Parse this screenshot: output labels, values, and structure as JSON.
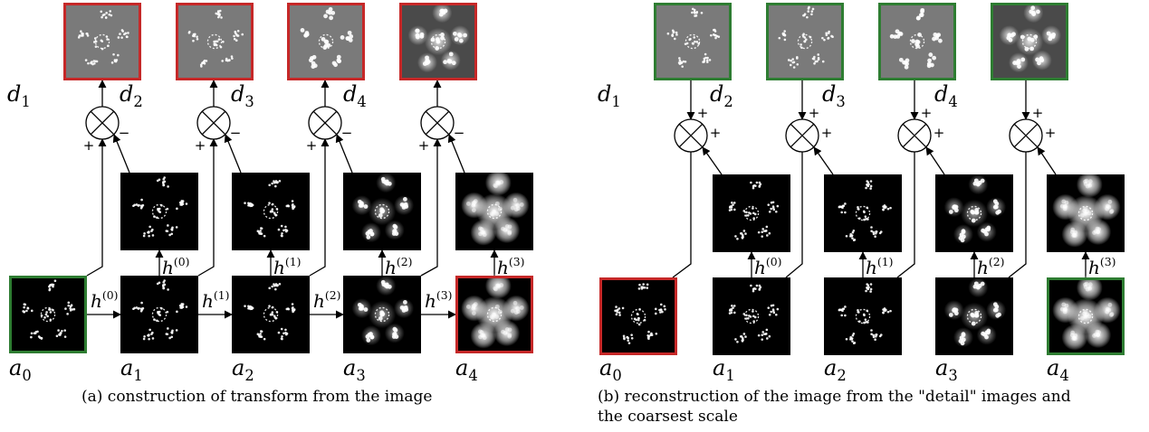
{
  "panel_a": {
    "caption": "(a) construction of transform from the image",
    "a_labels": [
      {
        "base": "a",
        "sub": "0"
      },
      {
        "base": "a",
        "sub": "1"
      },
      {
        "base": "a",
        "sub": "2"
      },
      {
        "base": "a",
        "sub": "3"
      },
      {
        "base": "a",
        "sub": "4"
      }
    ],
    "d_labels": [
      {
        "base": "d",
        "sub": "1"
      },
      {
        "base": "d",
        "sub": "2"
      },
      {
        "base": "d",
        "sub": "3"
      },
      {
        "base": "d",
        "sub": "4"
      }
    ],
    "h_labels": [
      {
        "base": "h",
        "sup": "(0)"
      },
      {
        "base": "h",
        "sup": "(1)"
      },
      {
        "base": "h",
        "sup": "(2)"
      },
      {
        "base": "h",
        "sup": "(3)"
      }
    ],
    "plus": "+",
    "minus": "−"
  },
  "panel_b": {
    "caption_line1": "(b) reconstruction of the image from the \"detail\" images and",
    "caption_line2": "the coarsest scale",
    "a_labels": [
      {
        "base": "a",
        "sub": "0"
      },
      {
        "base": "a",
        "sub": "1"
      },
      {
        "base": "a",
        "sub": "2"
      },
      {
        "base": "a",
        "sub": "3"
      },
      {
        "base": "a",
        "sub": "4"
      }
    ],
    "d_labels": [
      {
        "base": "d",
        "sub": "1"
      },
      {
        "base": "d",
        "sub": "2"
      },
      {
        "base": "d",
        "sub": "3"
      },
      {
        "base": "d",
        "sub": "4"
      }
    ],
    "h_labels": [
      {
        "base": "h",
        "sup": "(0)"
      },
      {
        "base": "h",
        "sup": "(1)"
      },
      {
        "base": "h",
        "sup": "(2)"
      },
      {
        "base": "h",
        "sup": "(3)"
      }
    ],
    "plus": "+"
  },
  "colors": {
    "highlight_red": "#c62828",
    "highlight_green": "#2e7d32",
    "image_black": "#000000",
    "detail_gray": "#7a7a7a"
  }
}
